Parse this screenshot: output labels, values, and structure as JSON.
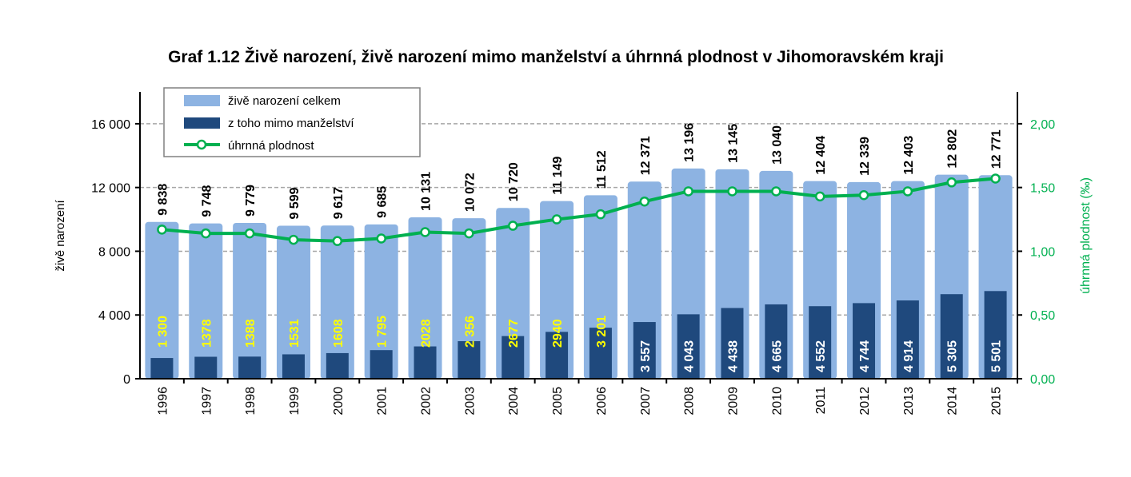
{
  "chart_data": {
    "type": "bar",
    "title": "Graf 1.12 Živě narození, živě narození mimo manželství a úhrnná plodnost v Jihomoravském kraji",
    "xlabel": "",
    "ylabel": "živě narození",
    "y2label": "úhrnná plodnost (‰)",
    "ylim": [
      0,
      18000
    ],
    "y2lim": [
      0,
      2.25
    ],
    "yticks": [
      "0",
      "4 000",
      "8 000",
      "12 000",
      "16 000"
    ],
    "ytick_values": [
      0,
      4000,
      8000,
      12000,
      16000
    ],
    "y2ticks": [
      "0,00",
      "0,50",
      "1,00",
      "1,50",
      "2,00"
    ],
    "y2tick_values": [
      0,
      0.5,
      1.0,
      1.5,
      2.0
    ],
    "grid": true,
    "legend_position": "top-left",
    "categories": [
      "1996",
      "1997",
      "1998",
      "1999",
      "2000",
      "2001",
      "2002",
      "2003",
      "2004",
      "2005",
      "2006",
      "2007",
      "2008",
      "2009",
      "2010",
      "2011",
      "2012",
      "2013",
      "2014",
      "2015"
    ],
    "series": [
      {
        "name": "živě narození celkem",
        "type": "bar",
        "color": "#8DB3E2",
        "values": [
          9838,
          9748,
          9779,
          9599,
          9617,
          9685,
          10131,
          10072,
          10720,
          11149,
          11512,
          12371,
          13196,
          13145,
          13040,
          12404,
          12339,
          12403,
          12802,
          12771
        ],
        "labels": [
          "9 838",
          "9 748",
          "9 779",
          "9 599",
          "9 617",
          "9 685",
          "10 131",
          "10 072",
          "10 720",
          "11 149",
          "11 512",
          "12 371",
          "13 196",
          "13 145",
          "13 040",
          "12 404",
          "12 339",
          "12 403",
          "12 802",
          "12 771"
        ]
      },
      {
        "name": "z toho mimo manželství",
        "type": "bar",
        "color": "#1F497D",
        "values": [
          1300,
          1378,
          1388,
          1531,
          1608,
          1795,
          2028,
          2356,
          2677,
          2940,
          3201,
          3557,
          4043,
          4438,
          4665,
          4552,
          4744,
          4914,
          5305,
          5501
        ],
        "labels": [
          "1 300",
          "1378",
          "1388",
          "1531",
          "1608",
          "1 795",
          "2028",
          "2 356",
          "2677",
          "2940",
          "3 201",
          "3 557",
          "4 043",
          "4 438",
          "4 665",
          "4 552",
          "4 744",
          "4 914",
          "5 305",
          "5 501"
        ]
      },
      {
        "name": "úhrnná plodnost",
        "type": "line",
        "axis": "right",
        "color": "#00B050",
        "values": [
          1.17,
          1.14,
          1.14,
          1.09,
          1.08,
          1.1,
          1.15,
          1.14,
          1.2,
          1.25,
          1.29,
          1.39,
          1.47,
          1.47,
          1.47,
          1.43,
          1.44,
          1.47,
          1.54,
          1.57
        ]
      }
    ]
  }
}
